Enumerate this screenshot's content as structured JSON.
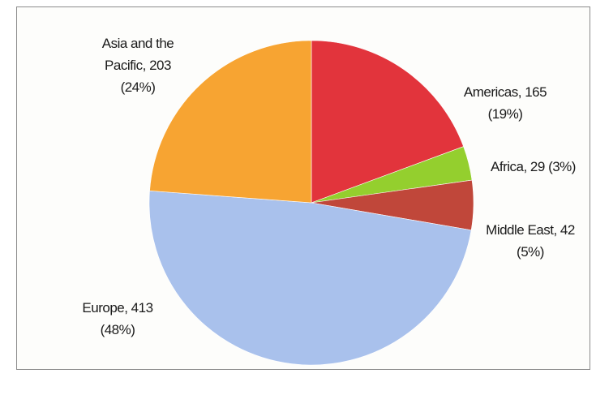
{
  "chart_data": {
    "type": "pie",
    "title": "",
    "slices": [
      {
        "name": "Americas",
        "value": 165,
        "percent": "19%",
        "color": "#e2343c",
        "label_line1": "Americas, 165",
        "label_line2": "(19%)"
      },
      {
        "name": "Africa",
        "value": 29,
        "percent": "3%",
        "color": "#94cf2e",
        "label_line1": "Africa, 29 (3%)",
        "label_line2": ""
      },
      {
        "name": "Middle East",
        "value": 42,
        "percent": "5%",
        "color": "#c0473a",
        "label_line1": "Middle East, 42",
        "label_line2": "(5%)"
      },
      {
        "name": "Europe",
        "value": 413,
        "percent": "48%",
        "color": "#a9c1ec",
        "label_line1": "Europe, 413",
        "label_line2": "(48%)"
      },
      {
        "name": "Asia and the Pacific",
        "value": 203,
        "percent": "24%",
        "color": "#f7a432",
        "label_line1": "Asia and the",
        "label_line2": "Pacific, 203",
        "label_line3": "(24%)"
      }
    ],
    "start_angle_deg": 0,
    "direction": "clockwise",
    "legend": "none"
  }
}
